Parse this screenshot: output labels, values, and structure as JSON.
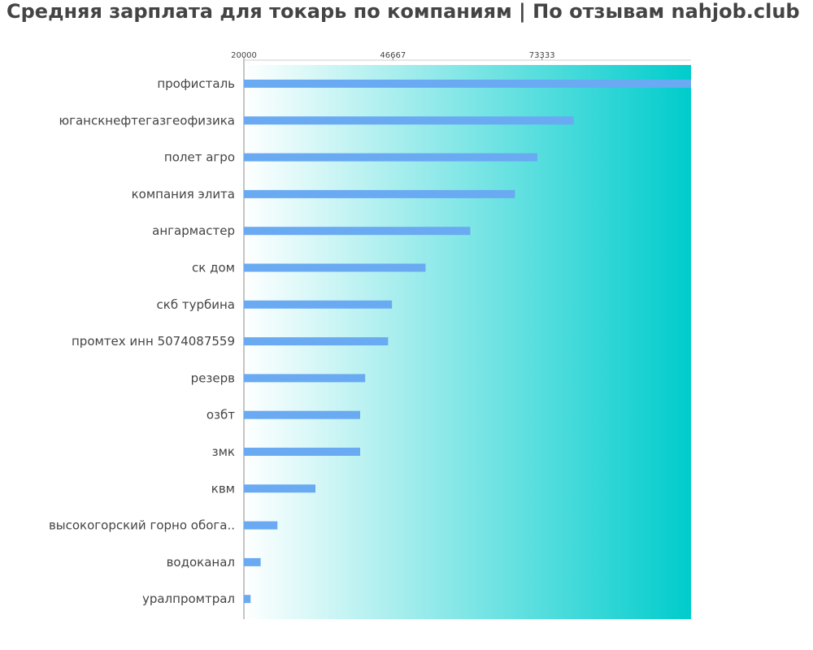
{
  "title": "Средняя зарплата для токарь по компаниям  | По отзывам nahjob.club",
  "colors": {
    "bar": "#6aaaf2",
    "gradient_start": "#ffffff",
    "gradient_end": "#00cccc",
    "label": "#444444",
    "axis": "#888888"
  },
  "chart_data": {
    "type": "bar",
    "orientation": "horizontal",
    "title": "Средняя зарплата для токарь по компаниям  | По отзывам nahjob.club",
    "xlabel": "",
    "ylabel": "",
    "xlim": [
      20000,
      100000
    ],
    "x_ticks": [
      20000,
      46667,
      73333
    ],
    "x_tick_labels": [
      "20000",
      "46667",
      "73333"
    ],
    "axis_position": "top",
    "legend": "none",
    "categories": [
      "профисталь",
      "юганскнефтегазгеофизика",
      "полет агро",
      "компания элита",
      "ангармастер",
      "ск дом",
      "скб турбина",
      "промтех инн 5074087559",
      "резерв",
      "озбт",
      "змк",
      "квм",
      "высокогорский горно обога..",
      "водоканал",
      "уралпромтрал"
    ],
    "values": [
      100000,
      79000,
      72500,
      68500,
      60500,
      52500,
      46500,
      45800,
      41700,
      40800,
      40800,
      32800,
      26000,
      23000,
      21200
    ]
  }
}
